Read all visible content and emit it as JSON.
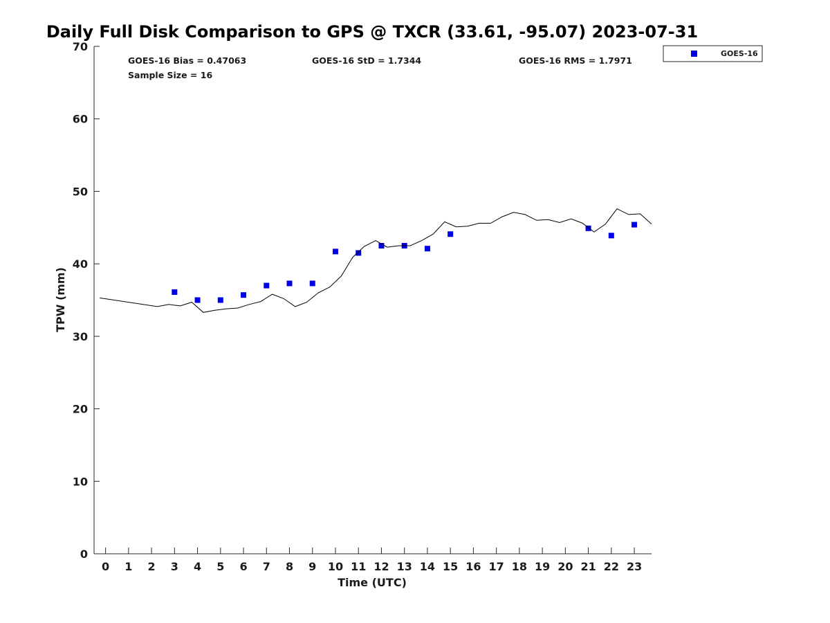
{
  "chart_data": {
    "type": "scatter",
    "title": "Daily Full Disk Comparison to GPS @ TXCR (33.61, -95.07) 2023-07-31",
    "xlabel": "Time (UTC)",
    "ylabel": "TPW (mm)",
    "xlim": [
      -0.5,
      23.75
    ],
    "ylim": [
      0,
      70
    ],
    "xticks": [
      0,
      1,
      2,
      3,
      4,
      5,
      6,
      7,
      8,
      9,
      10,
      11,
      12,
      13,
      14,
      15,
      16,
      17,
      18,
      19,
      20,
      21,
      22,
      23
    ],
    "yticks": [
      0,
      10,
      20,
      30,
      40,
      50,
      60,
      70
    ],
    "grid": false,
    "legend_position": "outside-top-right",
    "stats": [
      "GOES-16 Bias = 0.47063",
      "GOES-16 StD = 1.7344",
      "GOES-16 RMS = 1.7971",
      "Sample Size = 16"
    ],
    "series": [
      {
        "name": "GOES-16",
        "kind": "scatter",
        "marker": "square",
        "color": "#0000e6",
        "x": [
          3,
          4,
          5,
          6,
          7,
          8,
          9,
          10,
          11,
          12,
          13,
          14,
          15,
          21,
          22,
          23
        ],
        "y": [
          36.1,
          35.0,
          35.0,
          35.7,
          37.0,
          37.3,
          37.3,
          41.7,
          41.5,
          42.5,
          42.5,
          42.1,
          44.1,
          44.9,
          43.9,
          45.4
        ]
      },
      {
        "kind": "line",
        "color": "#000000",
        "x": [
          -0.25,
          2.25,
          2.75,
          3.25,
          3.75,
          4.25,
          4.75,
          5.25,
          5.75,
          6.25,
          6.75,
          7.25,
          7.75,
          8.25,
          8.75,
          9.25,
          9.75,
          10.25,
          10.75,
          11.25,
          11.75,
          12.25,
          12.75,
          13.25,
          13.75,
          14.25,
          14.75,
          15.25,
          15.75,
          16.25,
          16.75,
          17.25,
          17.75,
          18.25,
          18.75,
          19.25,
          19.75,
          20.25,
          20.75,
          21.25,
          21.75,
          22.25,
          22.75,
          23.25,
          23.75
        ],
        "y": [
          35.3,
          34.1,
          34.4,
          34.2,
          34.7,
          33.3,
          33.6,
          33.8,
          33.9,
          34.4,
          34.8,
          35.8,
          35.2,
          34.1,
          34.7,
          36.0,
          36.8,
          38.3,
          40.9,
          42.4,
          43.2,
          42.3,
          42.5,
          42.5,
          43.2,
          44.1,
          45.8,
          45.1,
          45.2,
          45.6,
          45.6,
          46.5,
          47.1,
          46.8,
          46.0,
          46.1,
          45.7,
          46.2,
          45.6,
          44.4,
          45.5,
          47.6,
          46.8,
          46.9,
          45.5
        ]
      }
    ]
  }
}
